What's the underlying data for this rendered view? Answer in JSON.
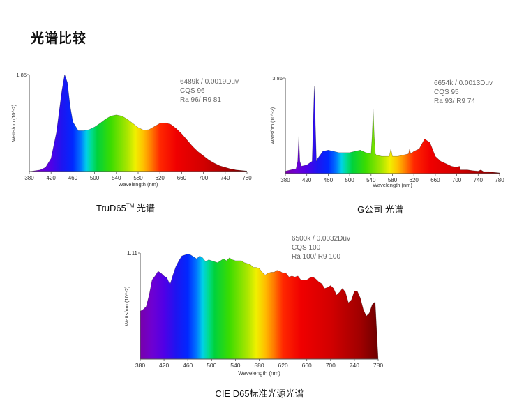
{
  "page": {
    "title": "光谱比较"
  },
  "chart_data": [
    {
      "type": "area",
      "caption": "TruD65",
      "caption_sup": "TM",
      "caption_suffix": " 光谱",
      "annotation": [
        "6489k / 0.0019Duv",
        "CQS 96",
        "Ra 96/ R9 81"
      ],
      "xlabel": "Wavelength (nm)",
      "ylabel": "Watts/nm (10^-2)",
      "xlim": [
        380,
        780
      ],
      "ylim": [
        0,
        1.85
      ],
      "x_ticks": [
        380,
        420,
        460,
        500,
        540,
        580,
        620,
        660,
        700,
        740,
        780
      ],
      "y_ticks": [
        1.85
      ],
      "x": [
        380,
        400,
        410,
        420,
        430,
        440,
        445,
        450,
        455,
        460,
        470,
        480,
        490,
        500,
        510,
        520,
        530,
        540,
        550,
        560,
        570,
        580,
        590,
        600,
        610,
        620,
        630,
        640,
        650,
        660,
        670,
        680,
        690,
        700,
        710,
        720,
        730,
        740,
        750,
        760,
        770,
        780
      ],
      "y": [
        0.0,
        0.03,
        0.08,
        0.25,
        0.75,
        1.55,
        1.85,
        1.7,
        1.25,
        0.95,
        0.78,
        0.78,
        0.8,
        0.85,
        0.92,
        1.0,
        1.06,
        1.08,
        1.06,
        1.0,
        0.92,
        0.84,
        0.79,
        0.8,
        0.86,
        0.92,
        0.93,
        0.9,
        0.82,
        0.72,
        0.6,
        0.48,
        0.38,
        0.3,
        0.22,
        0.16,
        0.11,
        0.08,
        0.05,
        0.03,
        0.02,
        0.01
      ]
    },
    {
      "type": "area",
      "caption": "G公司 光谱",
      "annotation": [
        "6654k / 0.0013Duv",
        "CQS 95",
        "Ra 93/ R9 74"
      ],
      "xlabel": "Wavelength (nm)",
      "ylabel": "Watts/nm (10^-2)",
      "xlim": [
        380,
        780
      ],
      "ylim": [
        0,
        3.86
      ],
      "x_ticks": [
        380,
        420,
        460,
        500,
        540,
        580,
        620,
        660,
        700,
        740,
        780
      ],
      "y_ticks": [
        3.86
      ],
      "x": [
        380,
        400,
        403,
        405,
        407,
        410,
        420,
        430,
        432,
        434,
        436,
        438,
        440,
        450,
        460,
        470,
        480,
        490,
        500,
        510,
        520,
        530,
        540,
        542,
        544,
        546,
        548,
        550,
        560,
        574,
        577,
        580,
        590,
        600,
        610,
        612,
        614,
        620,
        630,
        640,
        650,
        660,
        670,
        680,
        690,
        700,
        705,
        707,
        710,
        720,
        730,
        740,
        745,
        750,
        760,
        770,
        780
      ],
      "y": [
        0.1,
        0.2,
        0.5,
        1.5,
        0.5,
        0.3,
        0.35,
        0.5,
        2.0,
        3.55,
        2.0,
        0.5,
        0.6,
        0.9,
        0.95,
        0.9,
        0.85,
        0.85,
        0.85,
        0.9,
        0.95,
        0.85,
        0.8,
        1.5,
        2.6,
        1.5,
        0.8,
        0.75,
        0.7,
        0.7,
        1.0,
        0.7,
        0.7,
        0.75,
        0.8,
        1.0,
        0.8,
        0.9,
        1.0,
        1.4,
        1.25,
        0.7,
        0.5,
        0.4,
        0.3,
        0.25,
        0.3,
        0.15,
        0.15,
        0.15,
        0.12,
        0.1,
        0.15,
        0.08,
        0.08,
        0.05,
        0.03
      ]
    },
    {
      "type": "area",
      "caption": "CIE D65标准光源光谱",
      "annotation": [
        "6500k / 0.0032Duv",
        "CQS 100",
        "Ra 100/ R9 100"
      ],
      "xlabel": "Wavelength (nm)",
      "ylabel": "Watts/nm (10^-2)",
      "xlim": [
        380,
        780
      ],
      "ylim": [
        0,
        1.11
      ],
      "x_ticks": [
        380,
        420,
        460,
        500,
        540,
        580,
        620,
        660,
        700,
        740,
        780
      ],
      "y_ticks": [
        1.11
      ],
      "x": [
        380,
        385,
        390,
        395,
        400,
        405,
        410,
        415,
        420,
        425,
        430,
        435,
        440,
        445,
        450,
        455,
        460,
        465,
        470,
        475,
        480,
        485,
        490,
        495,
        500,
        505,
        510,
        515,
        520,
        525,
        530,
        535,
        540,
        545,
        550,
        555,
        560,
        565,
        570,
        575,
        580,
        585,
        590,
        595,
        600,
        605,
        610,
        615,
        620,
        625,
        630,
        635,
        640,
        645,
        650,
        655,
        660,
        665,
        670,
        675,
        680,
        685,
        690,
        695,
        700,
        705,
        710,
        715,
        720,
        725,
        730,
        735,
        740,
        745,
        750,
        755,
        760,
        765,
        770,
        775,
        780
      ],
      "y": [
        0.5,
        0.52,
        0.55,
        0.67,
        0.83,
        0.87,
        0.92,
        0.9,
        0.87,
        0.85,
        0.78,
        0.88,
        0.97,
        1.03,
        1.08,
        1.09,
        1.1,
        1.09,
        1.07,
        1.05,
        1.08,
        1.06,
        1.02,
        1.04,
        1.03,
        1.02,
        1.01,
        1.03,
        1.05,
        1.03,
        1.06,
        1.04,
        1.03,
        1.03,
        1.03,
        1.01,
        1.0,
        0.99,
        0.96,
        0.96,
        0.95,
        0.91,
        0.88,
        0.9,
        0.91,
        0.91,
        0.93,
        0.92,
        0.9,
        0.9,
        0.86,
        0.87,
        0.86,
        0.87,
        0.83,
        0.83,
        0.83,
        0.85,
        0.86,
        0.84,
        0.81,
        0.79,
        0.74,
        0.75,
        0.77,
        0.74,
        0.67,
        0.7,
        0.74,
        0.7,
        0.59,
        0.62,
        0.71,
        0.71,
        0.64,
        0.52,
        0.45,
        0.48,
        0.57,
        0.6,
        0.0
      ]
    }
  ]
}
